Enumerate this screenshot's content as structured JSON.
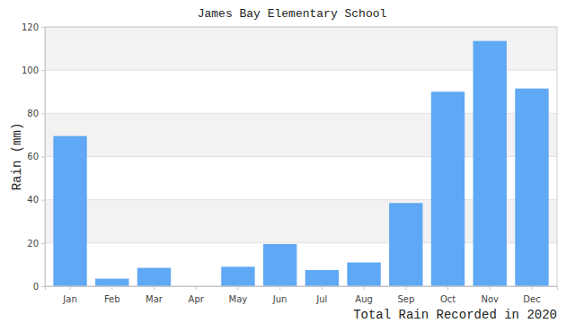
{
  "chart_data": {
    "type": "bar",
    "title": "James Bay Elementary School",
    "y_label": "Rain (mm)",
    "x_label": "Total Rain Recorded in 2020",
    "categories": [
      "Jan",
      "Feb",
      "Mar",
      "Apr",
      "May",
      "Jun",
      "Jul",
      "Aug",
      "Sep",
      "Oct",
      "Nov",
      "Dec"
    ],
    "values": [
      69.5,
      3.5,
      8.5,
      0,
      9,
      19.5,
      7.5,
      11,
      38.5,
      90,
      113.5,
      91.5
    ],
    "color": "#5fa8f5",
    "ylim": [
      0,
      120
    ],
    "yticks": [
      0,
      20,
      40,
      60,
      80,
      100,
      120
    ],
    "grid": true
  }
}
